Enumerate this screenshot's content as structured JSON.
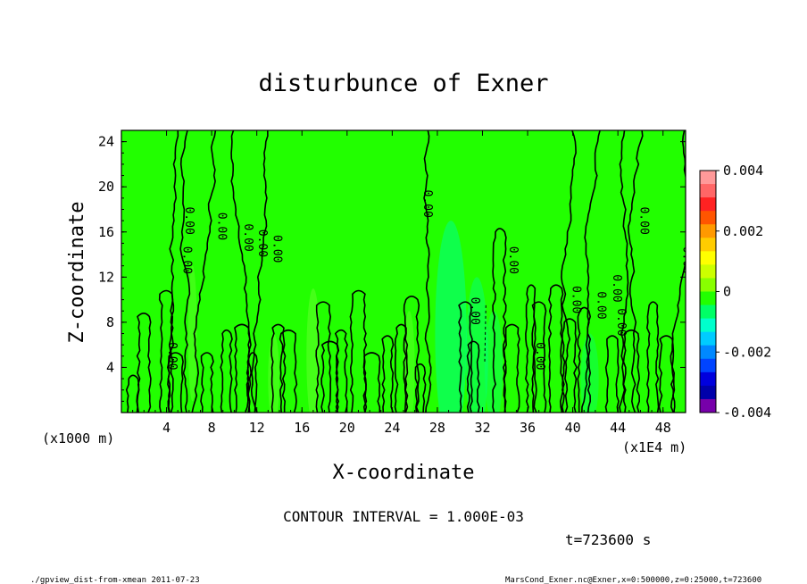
{
  "chart_data": {
    "type": "heatmap",
    "title": "disturbunce of Exner",
    "xlabel": "X-coordinate",
    "ylabel": "Z-coordinate",
    "x_unit_note": "(x1000 m)",
    "x_multiplier_note": "(x1E4 m)",
    "xlim": [
      0,
      50
    ],
    "ylim": [
      0,
      25
    ],
    "x_ticks": [
      "4",
      "8",
      "12",
      "16",
      "20",
      "24",
      "28",
      "32",
      "36",
      "40",
      "44",
      "48"
    ],
    "y_ticks": [
      "4",
      "8",
      "12",
      "16",
      "20",
      "24"
    ],
    "colorbar": {
      "range": [
        -0.004,
        0.004
      ],
      "tick_labels": [
        "0.004",
        "0.002",
        "0",
        "-0.002",
        "-0.004"
      ],
      "colors": [
        "#ff9999",
        "#ff6666",
        "#ff2222",
        "#ff5500",
        "#ff9900",
        "#ffcc00",
        "#ffff00",
        "#ccff00",
        "#88ff00",
        "#22ff00",
        "#00ff66",
        "#00ffcc",
        "#00ccff",
        "#0088ff",
        "#0044ff",
        "#0000dd",
        "#0000aa",
        "#7700aa"
      ]
    },
    "field_colors": {
      "background": "#22ff00",
      "positive_patch": "#88ff44",
      "negative_patch": "#00ff88"
    },
    "contour_labels": [
      "0.00",
      "0.00",
      "0.00",
      "0.00",
      "0.00",
      "0.00",
      "0.00",
      "0.00",
      "0.00",
      "0.00",
      "0.00",
      "0.00",
      "0.00",
      "0.00",
      "0.00",
      "0.00",
      "0.00"
    ],
    "contour_interval_text": "CONTOUR INTERVAL = 1.000E-03",
    "time_text": "t=723600 s"
  },
  "footer": {
    "left": "./gpview_dist-from-xmean  2011-07-23",
    "right": "MarsCond_Exner.nc@Exner,x=0:500000,z=0:25000,t=723600"
  }
}
